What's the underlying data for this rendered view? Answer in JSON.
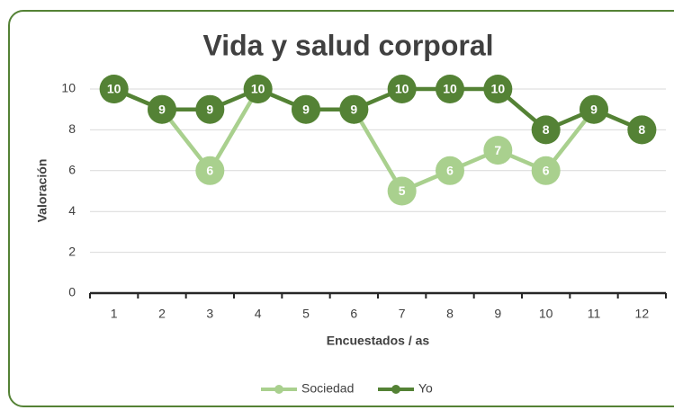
{
  "chart_data": {
    "type": "line",
    "title": "Vida y salud corporal",
    "x_label": "Encuestados / as",
    "y_label": "Valoración",
    "categories": [
      "1",
      "2",
      "3",
      "4",
      "5",
      "6",
      "7",
      "8",
      "9",
      "10",
      "11",
      "12"
    ],
    "series": [
      {
        "name": "Sociedad",
        "color": "#a9d08e",
        "values": [
          10,
          9,
          6,
          10,
          9,
          9,
          5,
          6,
          7,
          6,
          9,
          8
        ]
      },
      {
        "name": "Yo",
        "color": "#548235",
        "values": [
          10,
          9,
          9,
          10,
          9,
          9,
          10,
          10,
          10,
          8,
          9,
          8
        ]
      }
    ],
    "ylim": [
      0,
      11
    ],
    "yticks": [
      0,
      2,
      4,
      6,
      8,
      10
    ],
    "grid": true,
    "legend": "bottom"
  }
}
